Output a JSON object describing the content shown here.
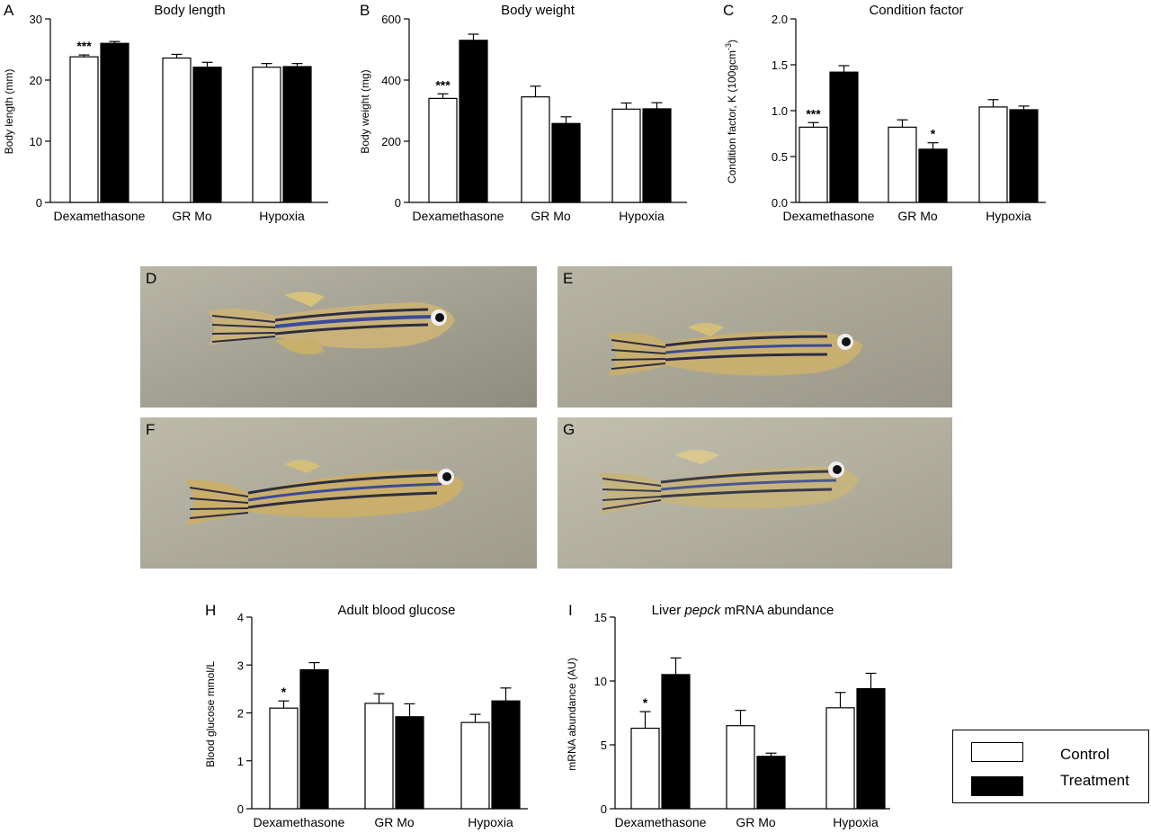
{
  "chart_data": [
    {
      "id": "A",
      "type": "bar",
      "title": "Body length",
      "ylabel": "Body length (mm)",
      "categories": [
        "Dexamethasone",
        "GR Mo",
        "Hypoxia"
      ],
      "yticks": [
        "0",
        "10",
        "20",
        "30"
      ],
      "ylim": [
        0,
        30
      ],
      "series": [
        {
          "name": "Control",
          "values": [
            23.8,
            23.6,
            22.1
          ],
          "errors": [
            0.3,
            0.6,
            0.6
          ]
        },
        {
          "name": "Treatment",
          "values": [
            26.0,
            22.1,
            22.2
          ],
          "errors": [
            0.3,
            0.8,
            0.5
          ]
        }
      ],
      "significance": [
        "***",
        "",
        "",
        "",
        "",
        ""
      ]
    },
    {
      "id": "B",
      "type": "bar",
      "title": "Body weight",
      "ylabel": "Body weight (mg)",
      "categories": [
        "Dexamethasone",
        "GR Mo",
        "Hypoxia"
      ],
      "yticks": [
        "0",
        "200",
        "400",
        "600"
      ],
      "ylim": [
        0,
        600
      ],
      "series": [
        {
          "name": "Control",
          "values": [
            340,
            345,
            305
          ],
          "errors": [
            15,
            35,
            20
          ]
        },
        {
          "name": "Treatment",
          "values": [
            530,
            258,
            306
          ],
          "errors": [
            20,
            22,
            20
          ]
        }
      ],
      "significance": [
        "***",
        "",
        "",
        "",
        "",
        ""
      ]
    },
    {
      "id": "C",
      "type": "bar",
      "title": "Condition factor",
      "ylabel": "Condition factor, K (100gcm-3)",
      "categories": [
        "Dexamethasone",
        "GR Mo",
        "Hypoxia"
      ],
      "yticks": [
        "0.0",
        "0.5",
        "1.0",
        "1.5",
        "2.0"
      ],
      "ylim": [
        0,
        2.0
      ],
      "series": [
        {
          "name": "Control",
          "values": [
            0.82,
            0.82,
            1.04
          ],
          "errors": [
            0.05,
            0.08,
            0.08
          ]
        },
        {
          "name": "Treatment",
          "values": [
            1.42,
            0.58,
            1.01
          ],
          "errors": [
            0.07,
            0.07,
            0.04
          ]
        }
      ],
      "significance": [
        "***",
        "",
        "",
        "*",
        "",
        ""
      ]
    },
    {
      "id": "H",
      "type": "bar",
      "title": "Adult blood glucose",
      "ylabel": "Blood glucose mmol/L",
      "categories": [
        "Dexamethasone",
        "GR Mo",
        "Hypoxia"
      ],
      "yticks": [
        "0",
        "1",
        "2",
        "3",
        "4"
      ],
      "ylim": [
        0,
        4
      ],
      "series": [
        {
          "name": "Control",
          "values": [
            2.1,
            2.2,
            1.8
          ],
          "errors": [
            0.15,
            0.2,
            0.17
          ]
        },
        {
          "name": "Treatment",
          "values": [
            2.9,
            1.92,
            2.25
          ],
          "errors": [
            0.15,
            0.27,
            0.27
          ]
        }
      ],
      "significance": [
        "*",
        "",
        "",
        "",
        "",
        ""
      ]
    },
    {
      "id": "I",
      "type": "bar",
      "title_prefix": "Liver ",
      "title_italic": "pepck",
      "title_suffix": " mRNA abundance",
      "ylabel": "mRNA abundance (AU)",
      "categories": [
        "Dexamethasone",
        "GR Mo",
        "Hypoxia"
      ],
      "yticks": [
        "0",
        "5",
        "10",
        "15"
      ],
      "ylim": [
        0,
        15
      ],
      "series": [
        {
          "name": "Control",
          "values": [
            6.3,
            6.5,
            7.9
          ],
          "errors": [
            1.3,
            1.2,
            1.2
          ]
        },
        {
          "name": "Treatment",
          "values": [
            10.5,
            4.1,
            9.4
          ],
          "errors": [
            1.3,
            0.25,
            1.2
          ]
        }
      ],
      "significance": [
        "*",
        "",
        "",
        "",
        "",
        ""
      ]
    }
  ],
  "photos": [
    {
      "letter": "D"
    },
    {
      "letter": "E"
    },
    {
      "letter": "F"
    },
    {
      "letter": "G"
    }
  ],
  "panel_letters": {
    "H": "H",
    "I": "I"
  },
  "legend": {
    "control": "Control",
    "treatment": "Treatment"
  }
}
